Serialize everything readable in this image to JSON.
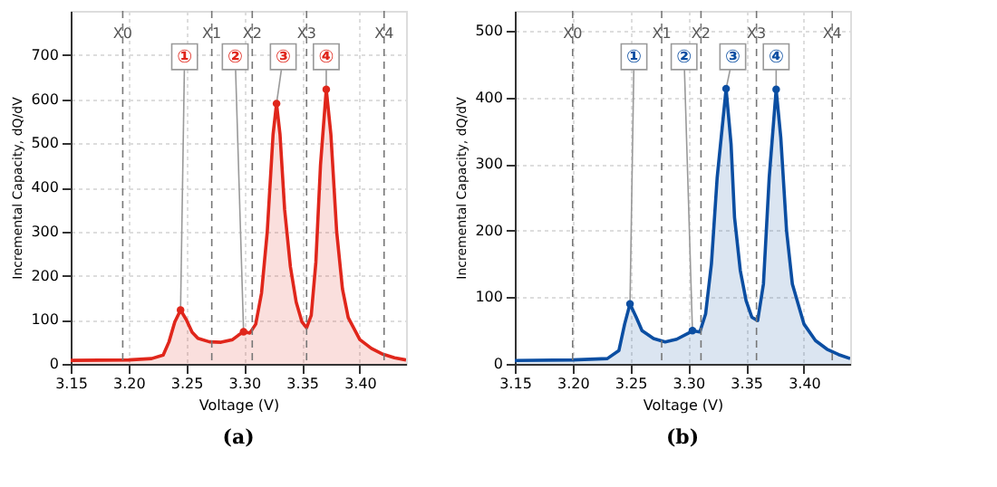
{
  "chart_data": [
    {
      "type": "area",
      "title": "(a)",
      "xlabel": "Voltage (V)",
      "ylabel": "Incremental Capacity, dQ/dV",
      "x": [
        3.15,
        3.2,
        3.22,
        3.23,
        3.235,
        3.24,
        3.245,
        3.25,
        3.255,
        3.26,
        3.27,
        3.28,
        3.29,
        3.295,
        3.2995,
        3.305,
        3.31,
        3.315,
        3.32,
        3.325,
        3.328,
        3.331,
        3.335,
        3.34,
        3.345,
        3.35,
        3.354,
        3.358,
        3.362,
        3.366,
        3.371,
        3.375,
        3.38,
        3.385,
        3.39,
        3.4,
        3.41,
        3.42,
        3.43,
        3.44
      ],
      "series": [
        {
          "color": "#e0261b",
          "values": [
            8,
            9,
            12,
            20,
            50,
            95,
            122,
            100,
            72,
            58,
            50,
            49,
            55,
            65,
            73,
            70,
            90,
            160,
            300,
            520,
            590,
            520,
            350,
            220,
            140,
            95,
            82,
            110,
            230,
            450,
            622,
            520,
            300,
            170,
            105,
            55,
            35,
            22,
            14,
            9
          ]
        }
      ],
      "xlim": [
        3.15,
        3.44
      ],
      "xticks": [
        3.15,
        {
          "value": 3.2,
          "label": "3.20"
        },
        3.25,
        {
          "value": 3.3,
          "label": "3.30"
        },
        3.35,
        {
          "value": 3.4,
          "label": "3.40"
        }
      ],
      "ylim": [
        0,
        800
      ],
      "yticks": [
        0,
        100,
        200,
        300,
        400,
        500,
        600,
        700
      ],
      "grid": true,
      "ref_lines": [
        {
          "axis": "x",
          "value": 3.195,
          "label": "X0",
          "line_style": "dashed"
        },
        {
          "axis": "x",
          "value": 3.272,
          "label": "X1",
          "line_style": "dashed"
        },
        {
          "axis": "x",
          "value": 3.307,
          "label": "X2",
          "line_style": "dashed"
        },
        {
          "axis": "x",
          "value": 3.354,
          "label": "X3",
          "line_style": "dashed"
        },
        {
          "axis": "x",
          "value": 3.421,
          "label": "X4",
          "line_style": "dashed"
        }
      ],
      "annotations": [
        {
          "text": "①",
          "x": 3.245,
          "y": 122
        },
        {
          "text": "②",
          "x": 3.2995,
          "y": 73
        },
        {
          "text": "③",
          "x": 3.328,
          "y": 590
        },
        {
          "text": "④",
          "x": 3.371,
          "y": 622
        }
      ]
    },
    {
      "type": "area",
      "title": "(b)",
      "xlabel": "Voltage (V)",
      "ylabel": "Incremental Capacity, dQ/dV",
      "x": [
        3.15,
        3.2,
        3.23,
        3.24,
        3.245,
        3.2496,
        3.255,
        3.26,
        3.27,
        3.28,
        3.29,
        3.3,
        3.3036,
        3.31,
        3.315,
        3.32,
        3.325,
        3.3327,
        3.337,
        3.34,
        3.345,
        3.35,
        3.355,
        3.36,
        3.365,
        3.37,
        3.376,
        3.38,
        3.385,
        3.39,
        3.4,
        3.41,
        3.42,
        3.43,
        3.44
      ],
      "series": [
        {
          "color": "#0b4ea2",
          "values": [
            5,
            6,
            8,
            20,
            60,
            90,
            70,
            50,
            38,
            33,
            37,
            46,
            50,
            48,
            75,
            150,
            280,
            413,
            330,
            220,
            140,
            95,
            70,
            65,
            120,
            280,
            412,
            340,
            200,
            120,
            60,
            35,
            22,
            14,
            8
          ]
        }
      ],
      "xlim": [
        3.15,
        3.44
      ],
      "xticks": [
        3.15,
        {
          "value": 3.2,
          "label": "3.20"
        },
        3.25,
        {
          "value": 3.3,
          "label": "3.30"
        },
        3.35,
        {
          "value": 3.4,
          "label": "3.40"
        }
      ],
      "ylim": [
        0,
        530
      ],
      "yticks": [
        0,
        100,
        200,
        300,
        400,
        500
      ],
      "grid": true,
      "ref_lines": [
        {
          "axis": "x",
          "value": 3.2,
          "label": "X0",
          "line_style": "dashed"
        },
        {
          "axis": "x",
          "value": 3.277,
          "label": "X1",
          "line_style": "dashed"
        },
        {
          "axis": "x",
          "value": 3.311,
          "label": "X2",
          "line_style": "dashed"
        },
        {
          "axis": "x",
          "value": 3.359,
          "label": "X3",
          "line_style": "dashed"
        },
        {
          "axis": "x",
          "value": 3.4245,
          "label": "X4",
          "line_style": "dashed"
        }
      ],
      "annotations": [
        {
          "text": "①",
          "x": 3.2496,
          "y": 90
        },
        {
          "text": "②",
          "x": 3.3036,
          "y": 50
        },
        {
          "text": "③",
          "x": 3.3327,
          "y": 413
        },
        {
          "text": "④",
          "x": 3.376,
          "y": 412
        }
      ]
    }
  ]
}
